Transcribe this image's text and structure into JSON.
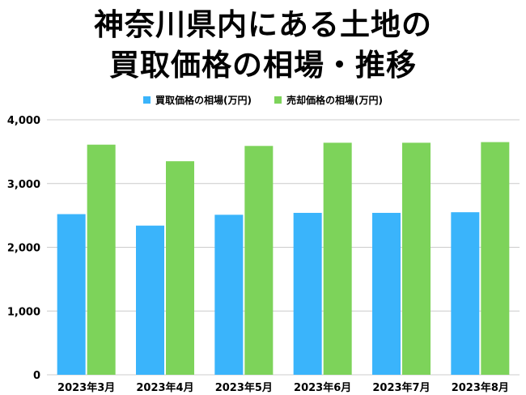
{
  "title": {
    "line1": "神奈川県内にある土地の",
    "line2": "買取価格の相場・推移"
  },
  "colors": {
    "buy": "#3ab4fb",
    "sell": "#7dd35a",
    "grid": "#cccccc"
  },
  "chart_data": {
    "type": "bar",
    "categories": [
      "2023年3月",
      "2023年4月",
      "2023年5月",
      "2023年6月",
      "2023年7月",
      "2023年8月"
    ],
    "series": [
      {
        "name": "買取価格の相場(万円)",
        "values": [
          2520,
          2340,
          2510,
          2540,
          2540,
          2550
        ]
      },
      {
        "name": "売却価格の相場(万円)",
        "values": [
          3610,
          3350,
          3590,
          3640,
          3640,
          3650
        ]
      }
    ],
    "ylim": [
      0,
      4000
    ],
    "yticks": [
      "0",
      "1,000",
      "2,000",
      "3,000",
      "4,000"
    ],
    "ytick_values": [
      0,
      1000,
      2000,
      3000,
      4000
    ],
    "grid": true,
    "legend": "top-center"
  }
}
